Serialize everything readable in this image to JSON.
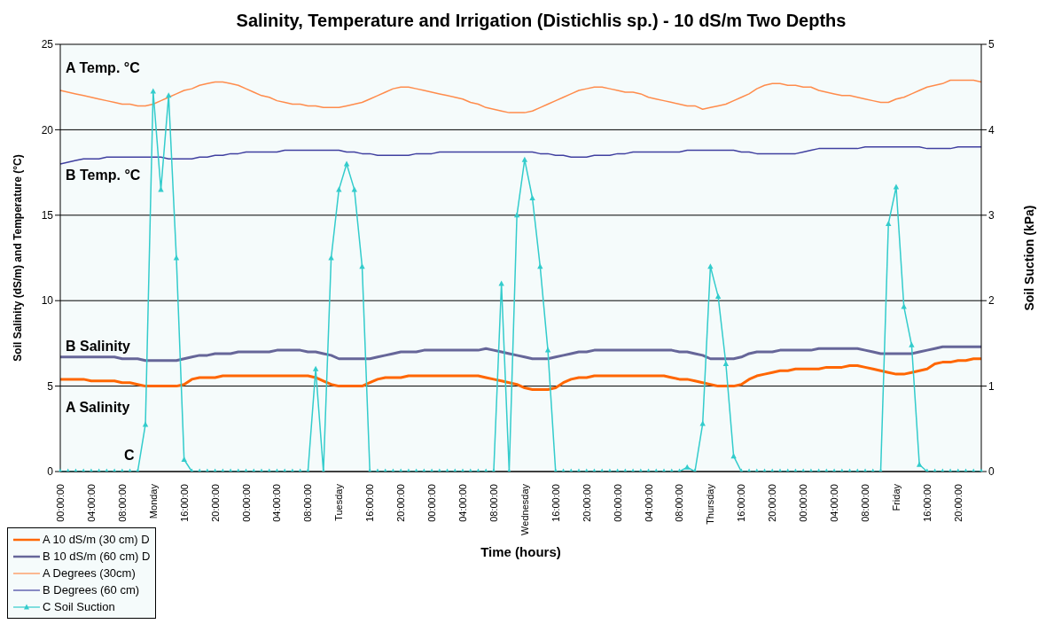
{
  "chart_data": {
    "type": "line",
    "title": "Salinity, Temperature and Irrigation (Distichlis sp.) - 10 dS/m Two Depths",
    "xlabel": "Time (hours)",
    "ylabel": "Soil Salinity (dS/m) and Temperature (°C)",
    "y2label": "Soil Suction (kPa)",
    "categories": [
      "00:00:00",
      null,
      null,
      null,
      "04:00:00",
      null,
      null,
      null,
      "08:00:00",
      null,
      null,
      null,
      "Monday",
      null,
      null,
      null,
      "16:00:00",
      null,
      null,
      null,
      "20:00:00",
      null,
      null,
      null,
      "00:00:00",
      null,
      null,
      null,
      "04:00:00",
      null,
      null,
      null,
      "08:00:00",
      null,
      null,
      null,
      "Tuesday",
      null,
      null,
      null,
      "16:00:00",
      null,
      null,
      null,
      "20:00:00",
      null,
      null,
      null,
      "00:00:00",
      null,
      null,
      null,
      "04:00:00",
      null,
      null,
      null,
      "08:00:00",
      null,
      null,
      null,
      "Wednesday",
      null,
      null,
      null,
      "16:00:00",
      null,
      null,
      null,
      "20:00:00",
      null,
      null,
      null,
      "00:00:00",
      null,
      null,
      null,
      "04:00:00",
      null,
      null,
      null,
      "08:00:00",
      null,
      null,
      null,
      "Thursday",
      null,
      null,
      null,
      "16:00:00",
      null,
      null,
      null,
      "20:00:00",
      null,
      null,
      null,
      "00:00:00",
      null,
      null,
      null,
      "04:00:00",
      null,
      null,
      null,
      "08:00:00",
      null,
      null,
      null,
      "Friday",
      null,
      null,
      null,
      "16:00:00",
      null,
      null,
      null,
      "20:00:00",
      null,
      null,
      null
    ],
    "ylim": [
      0,
      25
    ],
    "yticks": [
      0,
      5,
      10,
      15,
      20,
      25
    ],
    "y2lim": [
      0,
      5
    ],
    "y2ticks": [
      0,
      1,
      2,
      3,
      4,
      5
    ],
    "grid": "y",
    "legend": "bottom left",
    "series": [
      {
        "name": "A 10 dS/m (30 cm) D",
        "color": "#ff6600",
        "values": [
          5.4,
          5.4,
          5.4,
          5.4,
          5.3,
          5.3,
          5.3,
          5.3,
          5.2,
          5.2,
          5.1,
          5.0,
          5.0,
          5.0,
          5.0,
          5.0,
          5.1,
          5.4,
          5.5,
          5.5,
          5.5,
          5.6,
          5.6,
          5.6,
          5.6,
          5.6,
          5.6,
          5.6,
          5.6,
          5.6,
          5.6,
          5.6,
          5.6,
          5.5,
          5.3,
          5.1,
          5.0,
          5.0,
          5.0,
          5.0,
          5.2,
          5.4,
          5.5,
          5.5,
          5.5,
          5.6,
          5.6,
          5.6,
          5.6,
          5.6,
          5.6,
          5.6,
          5.6,
          5.6,
          5.6,
          5.5,
          5.4,
          5.3,
          5.2,
          5.1,
          4.9,
          4.8,
          4.8,
          4.8,
          4.9,
          5.2,
          5.4,
          5.5,
          5.5,
          5.6,
          5.6,
          5.6,
          5.6,
          5.6,
          5.6,
          5.6,
          5.6,
          5.6,
          5.6,
          5.5,
          5.4,
          5.4,
          5.3,
          5.2,
          5.1,
          5.0,
          5.0,
          5.0,
          5.1,
          5.4,
          5.6,
          5.7,
          5.8,
          5.9,
          5.9,
          6.0,
          6.0,
          6.0,
          6.0,
          6.1,
          6.1,
          6.1,
          6.2,
          6.2,
          6.1,
          6.0,
          5.9,
          5.8,
          5.7,
          5.7,
          5.8,
          5.9,
          6.0,
          6.3,
          6.4,
          6.4,
          6.5,
          6.5,
          6.6,
          6.6
        ]
      },
      {
        "name": "B 10 dS/m (60 cm) D",
        "color": "#666699",
        "values": [
          6.7,
          6.7,
          6.7,
          6.7,
          6.7,
          6.7,
          6.7,
          6.7,
          6.6,
          6.6,
          6.6,
          6.5,
          6.5,
          6.5,
          6.5,
          6.5,
          6.6,
          6.7,
          6.8,
          6.8,
          6.9,
          6.9,
          6.9,
          7.0,
          7.0,
          7.0,
          7.0,
          7.0,
          7.1,
          7.1,
          7.1,
          7.1,
          7.0,
          7.0,
          6.9,
          6.8,
          6.6,
          6.6,
          6.6,
          6.6,
          6.6,
          6.7,
          6.8,
          6.9,
          7.0,
          7.0,
          7.0,
          7.1,
          7.1,
          7.1,
          7.1,
          7.1,
          7.1,
          7.1,
          7.1,
          7.2,
          7.1,
          7.0,
          6.9,
          6.8,
          6.7,
          6.6,
          6.6,
          6.6,
          6.7,
          6.8,
          6.9,
          7.0,
          7.0,
          7.1,
          7.1,
          7.1,
          7.1,
          7.1,
          7.1,
          7.1,
          7.1,
          7.1,
          7.1,
          7.1,
          7.0,
          7.0,
          6.9,
          6.8,
          6.6,
          6.6,
          6.6,
          6.6,
          6.7,
          6.9,
          7.0,
          7.0,
          7.0,
          7.1,
          7.1,
          7.1,
          7.1,
          7.1,
          7.2,
          7.2,
          7.2,
          7.2,
          7.2,
          7.2,
          7.1,
          7.0,
          6.9,
          6.9,
          6.9,
          6.9,
          6.9,
          7.0,
          7.1,
          7.2,
          7.3,
          7.3,
          7.3,
          7.3,
          7.3,
          7.3
        ]
      },
      {
        "name": "A Degrees (30cm)",
        "color": "#ff8c4c",
        "values": [
          22.3,
          22.2,
          22.1,
          22.0,
          21.9,
          21.8,
          21.7,
          21.6,
          21.5,
          21.5,
          21.4,
          21.4,
          21.5,
          21.7,
          21.9,
          22.1,
          22.3,
          22.4,
          22.6,
          22.7,
          22.8,
          22.8,
          22.7,
          22.6,
          22.4,
          22.2,
          22.0,
          21.9,
          21.7,
          21.6,
          21.5,
          21.5,
          21.4,
          21.4,
          21.3,
          21.3,
          21.3,
          21.4,
          21.5,
          21.6,
          21.8,
          22.0,
          22.2,
          22.4,
          22.5,
          22.5,
          22.4,
          22.3,
          22.2,
          22.1,
          22.0,
          21.9,
          21.8,
          21.6,
          21.5,
          21.3,
          21.2,
          21.1,
          21.0,
          21.0,
          21.0,
          21.1,
          21.3,
          21.5,
          21.7,
          21.9,
          22.1,
          22.3,
          22.4,
          22.5,
          22.5,
          22.4,
          22.3,
          22.2,
          22.2,
          22.1,
          21.9,
          21.8,
          21.7,
          21.6,
          21.5,
          21.4,
          21.4,
          21.2,
          21.3,
          21.4,
          21.5,
          21.7,
          21.9,
          22.1,
          22.4,
          22.6,
          22.7,
          22.7,
          22.6,
          22.6,
          22.5,
          22.5,
          22.3,
          22.2,
          22.1,
          22.0,
          22.0,
          21.9,
          21.8,
          21.7,
          21.6,
          21.6,
          21.8,
          21.9,
          22.1,
          22.3,
          22.5,
          22.6,
          22.7,
          22.9,
          22.9,
          22.9,
          22.9,
          22.8
        ]
      },
      {
        "name": "B Degrees (60 cm)",
        "color": "#4040a0",
        "values": [
          18.0,
          18.1,
          18.2,
          18.3,
          18.3,
          18.3,
          18.4,
          18.4,
          18.4,
          18.4,
          18.4,
          18.4,
          18.4,
          18.4,
          18.3,
          18.3,
          18.3,
          18.3,
          18.4,
          18.4,
          18.5,
          18.5,
          18.6,
          18.6,
          18.7,
          18.7,
          18.7,
          18.7,
          18.7,
          18.8,
          18.8,
          18.8,
          18.8,
          18.8,
          18.8,
          18.8,
          18.8,
          18.7,
          18.7,
          18.6,
          18.6,
          18.5,
          18.5,
          18.5,
          18.5,
          18.5,
          18.6,
          18.6,
          18.6,
          18.7,
          18.7,
          18.7,
          18.7,
          18.7,
          18.7,
          18.7,
          18.7,
          18.7,
          18.7,
          18.7,
          18.7,
          18.7,
          18.6,
          18.6,
          18.5,
          18.5,
          18.4,
          18.4,
          18.4,
          18.5,
          18.5,
          18.5,
          18.6,
          18.6,
          18.7,
          18.7,
          18.7,
          18.7,
          18.7,
          18.7,
          18.7,
          18.8,
          18.8,
          18.8,
          18.8,
          18.8,
          18.8,
          18.8,
          18.7,
          18.7,
          18.6,
          18.6,
          18.6,
          18.6,
          18.6,
          18.6,
          18.7,
          18.8,
          18.9,
          18.9,
          18.9,
          18.9,
          18.9,
          18.9,
          19.0,
          19.0,
          19.0,
          19.0,
          19.0,
          19.0,
          19.0,
          19.0,
          18.9,
          18.9,
          18.9,
          18.9,
          19.0,
          19.0,
          19.0,
          19.0
        ]
      },
      {
        "name": "C Soil Suction",
        "color": "#33cccc",
        "axis": "y2",
        "marker": "triangle",
        "values": [
          0,
          0,
          0,
          0,
          0,
          0,
          0,
          0,
          0,
          0,
          0,
          0.55,
          4.45,
          3.3,
          4.4,
          2.5,
          0.14,
          0,
          0,
          0,
          0,
          0,
          0,
          0,
          0,
          0,
          0,
          0,
          0,
          0,
          0,
          0,
          0,
          1.2,
          0,
          2.5,
          3.3,
          3.6,
          3.3,
          2.4,
          0,
          0,
          0,
          0,
          0,
          0,
          0,
          0,
          0,
          0,
          0,
          0,
          0,
          0,
          0,
          0,
          0,
          2.2,
          0,
          3,
          3.65,
          3.2,
          2.4,
          1.42,
          0,
          0,
          0,
          0,
          0,
          0,
          0,
          0,
          0,
          0,
          0,
          0,
          0,
          0,
          0,
          0,
          0,
          0.05,
          0,
          0.56,
          2.4,
          2.05,
          1.26,
          0.18,
          0,
          0,
          0,
          0,
          0,
          0,
          0,
          0,
          0,
          0,
          0,
          0,
          0,
          0,
          0,
          0,
          0,
          0,
          0,
          2.9,
          3.33,
          1.93,
          1.48,
          0.08,
          0,
          0,
          0,
          0,
          0,
          0,
          0,
          0
        ]
      }
    ],
    "annotations": [
      "A Temp. °C",
      "B Temp. °C",
      "B Salinity",
      "A Salinity",
      "C"
    ]
  }
}
